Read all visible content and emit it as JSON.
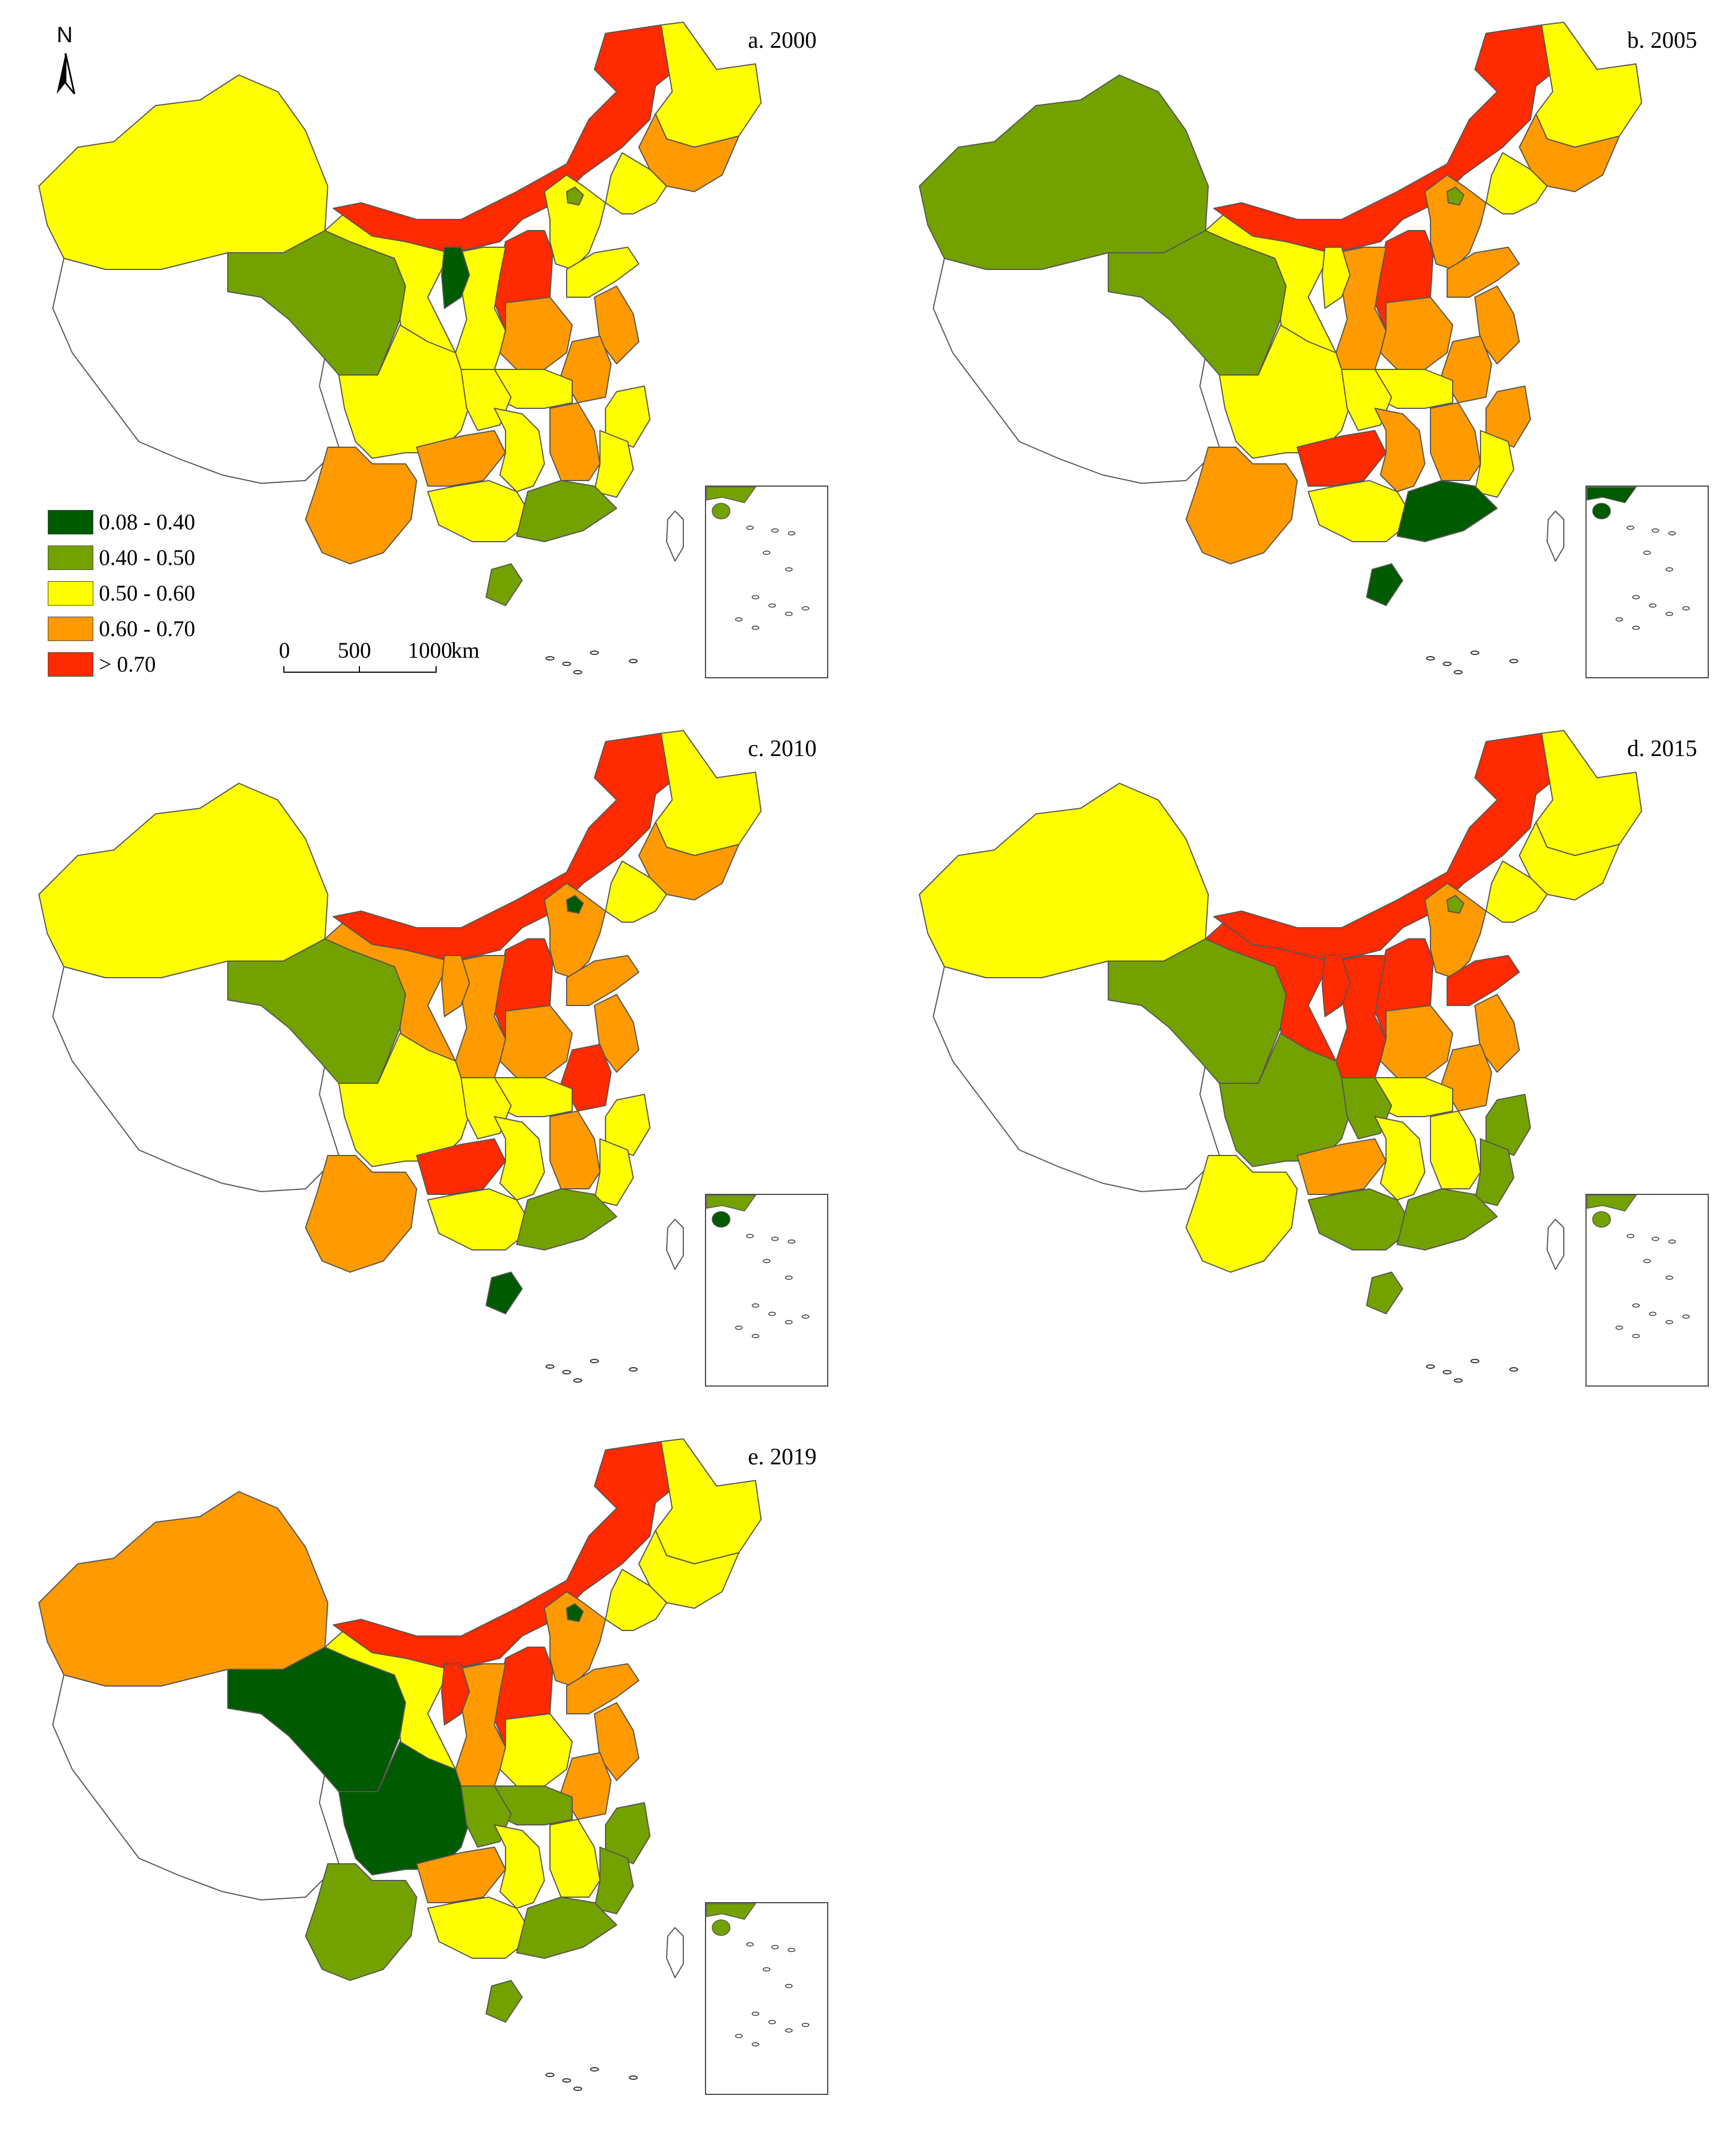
{
  "north_arrow": "N",
  "legend": {
    "items": [
      {
        "label": "0.08 - 0.40",
        "color": "#005a00"
      },
      {
        "label": "0.40 - 0.50",
        "color": "#73a100"
      },
      {
        "label": "0.50 - 0.60",
        "color": "#ffff00"
      },
      {
        "label": "0.60 - 0.70",
        "color": "#ff9a00"
      },
      {
        "label": "> 0.70",
        "color": "#ff2a00"
      }
    ]
  },
  "scalebar": {
    "labels": [
      "0",
      "500",
      "1000",
      "km"
    ]
  },
  "colors": {
    "boundary": "#555555",
    "inset_border": "#444444",
    "no_data": "#ffffff"
  },
  "panels": [
    {
      "label": "a. 2000",
      "regions": {
        "xinjiang": 2,
        "tibet": -1,
        "qinghai": 1,
        "gansu": 2,
        "ningxia": 0,
        "inner_mongolia": 4,
        "heilongjiang": 2,
        "jilin": 3,
        "liaoning": 2,
        "beijing": 1,
        "hebei": 2,
        "shanxi": 4,
        "shaanxi": 2,
        "sichuan": 2,
        "chongqing": 2,
        "yunnan": 3,
        "guizhou": 3,
        "guangxi": 2,
        "guangdong": 1,
        "hunan": 2,
        "jiangxi": 3,
        "fujian": 2,
        "zhejiang": 2,
        "anhui": 3,
        "henan": 3,
        "hubei": 2,
        "shandong": 2,
        "jiangsu": 3,
        "hainan": 1,
        "taiwan": -1
      }
    },
    {
      "label": "b. 2005",
      "regions": {
        "xinjiang": 1,
        "tibet": -1,
        "qinghai": 1,
        "gansu": 2,
        "ningxia": 2,
        "inner_mongolia": 4,
        "heilongjiang": 2,
        "jilin": 3,
        "liaoning": 2,
        "beijing": 1,
        "hebei": 3,
        "shanxi": 4,
        "shaanxi": 3,
        "sichuan": 2,
        "chongqing": 2,
        "yunnan": 3,
        "guizhou": 4,
        "guangxi": 2,
        "guangdong": 0,
        "hunan": 3,
        "jiangxi": 3,
        "fujian": 2,
        "zhejiang": 3,
        "anhui": 3,
        "henan": 3,
        "hubei": 2,
        "shandong": 3,
        "jiangsu": 3,
        "hainan": 0,
        "taiwan": -1
      }
    },
    {
      "label": "c. 2010",
      "regions": {
        "xinjiang": 2,
        "tibet": -1,
        "qinghai": 1,
        "gansu": 3,
        "ningxia": 3,
        "inner_mongolia": 4,
        "heilongjiang": 2,
        "jilin": 3,
        "liaoning": 2,
        "beijing": 0,
        "hebei": 3,
        "shanxi": 4,
        "shaanxi": 3,
        "sichuan": 2,
        "chongqing": 2,
        "yunnan": 3,
        "guizhou": 4,
        "guangxi": 2,
        "guangdong": 1,
        "hunan": 2,
        "jiangxi": 3,
        "fujian": 2,
        "zhejiang": 2,
        "anhui": 4,
        "henan": 3,
        "hubei": 2,
        "shandong": 3,
        "jiangsu": 3,
        "hainan": 0,
        "taiwan": -1
      }
    },
    {
      "label": "d. 2015",
      "regions": {
        "xinjiang": 2,
        "tibet": -1,
        "qinghai": 1,
        "gansu": 4,
        "ningxia": 4,
        "inner_mongolia": 4,
        "heilongjiang": 2,
        "jilin": 2,
        "liaoning": 2,
        "beijing": 1,
        "hebei": 3,
        "shanxi": 4,
        "shaanxi": 4,
        "sichuan": 1,
        "chongqing": 1,
        "yunnan": 2,
        "guizhou": 3,
        "guangxi": 1,
        "guangdong": 1,
        "hunan": 2,
        "jiangxi": 2,
        "fujian": 1,
        "zhejiang": 1,
        "anhui": 3,
        "henan": 3,
        "hubei": 2,
        "shandong": 4,
        "jiangsu": 3,
        "hainan": 1,
        "taiwan": -1
      }
    },
    {
      "label": "e. 2019",
      "regions": {
        "xinjiang": 3,
        "tibet": -1,
        "qinghai": 0,
        "gansu": 2,
        "ningxia": 4,
        "inner_mongolia": 4,
        "heilongjiang": 2,
        "jilin": 2,
        "liaoning": 2,
        "beijing": 0,
        "hebei": 3,
        "shanxi": 4,
        "shaanxi": 3,
        "sichuan": 0,
        "chongqing": 1,
        "yunnan": 1,
        "guizhou": 3,
        "guangxi": 2,
        "guangdong": 1,
        "hunan": 2,
        "jiangxi": 2,
        "fujian": 1,
        "zhejiang": 1,
        "anhui": 3,
        "henan": 2,
        "hubei": 1,
        "shandong": 3,
        "jiangsu": 3,
        "hainan": 1,
        "taiwan": -1
      }
    }
  ]
}
